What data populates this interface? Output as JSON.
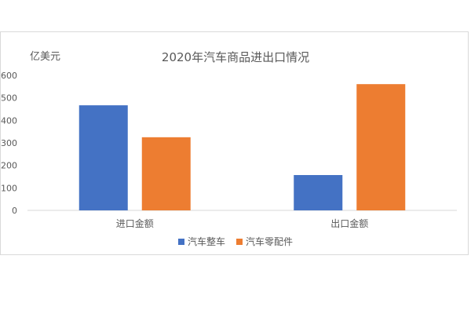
{
  "chart_data": {
    "type": "bar",
    "title": "2020年汽车商品进出口情况",
    "unit_label": "亿美元",
    "xlabel": "",
    "ylabel": "",
    "categories": [
      "进口金额",
      "出口金额"
    ],
    "series": [
      {
        "name": "汽车整车",
        "color": "#4472C4",
        "values": [
          467,
          157
        ]
      },
      {
        "name": "汽车零配件",
        "color": "#ED7D31",
        "values": [
          325,
          561
        ]
      }
    ],
    "ylim": [
      0,
      600
    ],
    "yticks": [
      0,
      100,
      200,
      300,
      400,
      500,
      600
    ],
    "grid": false,
    "legend_position": "bottom"
  }
}
